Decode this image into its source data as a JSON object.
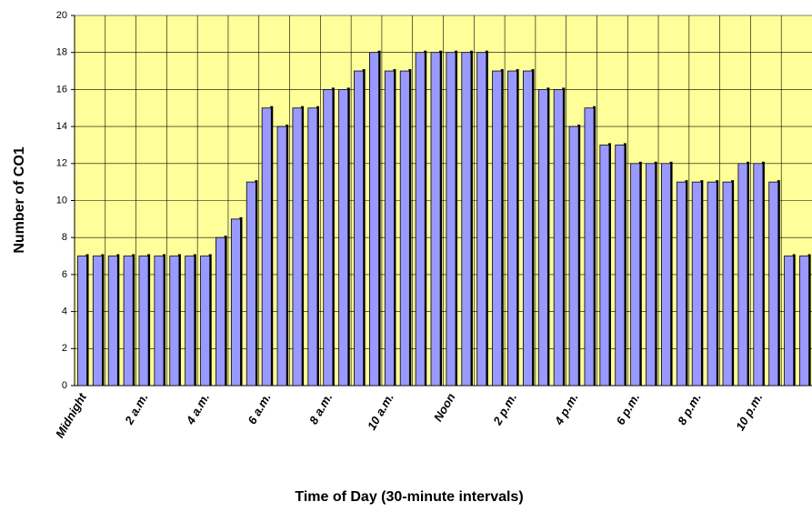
{
  "chart_data": {
    "type": "bar",
    "x_label": "Time of Day (30-minute intervals)",
    "y_label": "Number of CO1",
    "categories": [
      "Midnight",
      null,
      null,
      null,
      "2 a.m.",
      null,
      null,
      null,
      "4 a.m.",
      null,
      null,
      null,
      "6 a.m.",
      null,
      null,
      null,
      "8 a.m.",
      null,
      null,
      null,
      "10 a.m.",
      null,
      null,
      null,
      "Noon",
      null,
      null,
      null,
      "2 p.m.",
      null,
      null,
      null,
      "4 p.m.",
      null,
      null,
      null,
      "6 p.m.",
      null,
      null,
      null,
      "8 p.m.",
      null,
      null,
      null,
      "10 p.m.",
      null,
      null,
      null
    ],
    "values": [
      7,
      7,
      7,
      7,
      7,
      7,
      7,
      7,
      7,
      8,
      9,
      11,
      15,
      14,
      15,
      15,
      16,
      16,
      17,
      18,
      17,
      17,
      18,
      18,
      18,
      18,
      18,
      17,
      17,
      17,
      16,
      16,
      14,
      15,
      13,
      13,
      12,
      12,
      12,
      11,
      11,
      11,
      11,
      12,
      12,
      11,
      7,
      7
    ],
    "color": "#9999ff",
    "ylim": [
      0,
      20
    ],
    "yticks": [
      0,
      2,
      4,
      6,
      8,
      10,
      12,
      14,
      16,
      18,
      20
    ],
    "grid": true
  }
}
